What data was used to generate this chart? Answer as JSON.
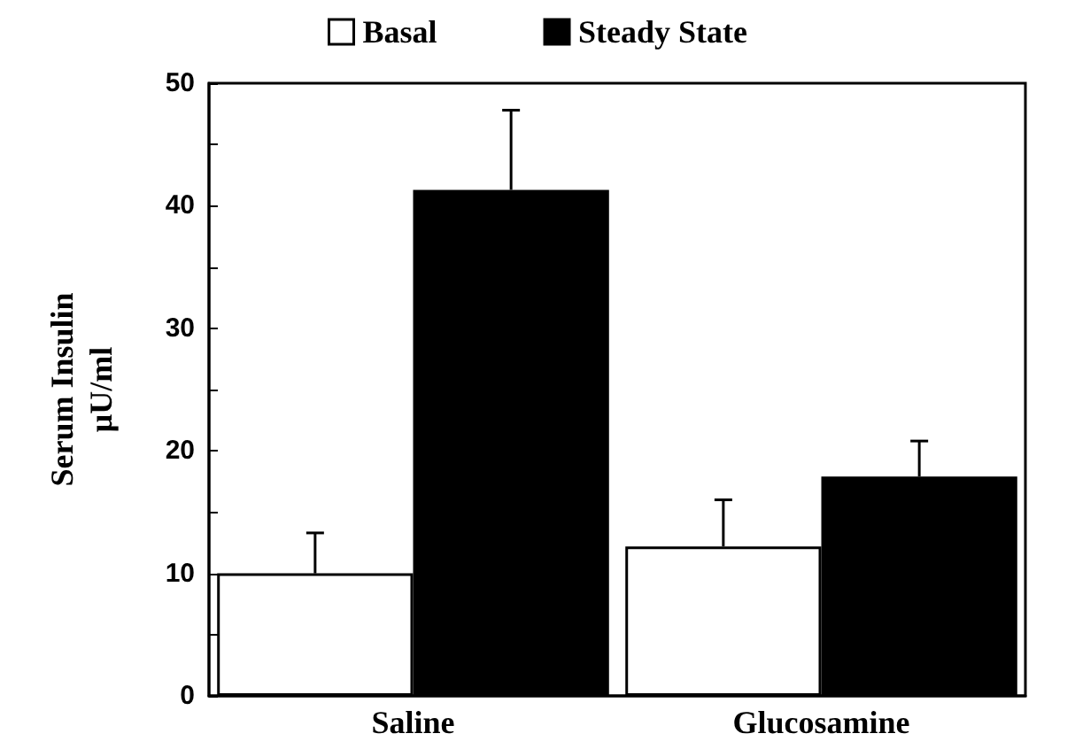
{
  "chart_data": {
    "type": "bar",
    "ylabel": "Serum Insulin\nμU/ml",
    "categories": [
      "Saline",
      "Glucosamine"
    ],
    "series": [
      {
        "name": "Basal",
        "color": "#ffffff",
        "values": [
          10,
          12.2
        ],
        "errors": [
          [
            10,
            13.3
          ],
          [
            12.2,
            16
          ]
        ]
      },
      {
        "name": "Steady State",
        "color": "#000000",
        "values": [
          41.3,
          17.9
        ],
        "errors": [
          [
            41.3,
            47.8
          ],
          [
            17.9,
            20.8
          ]
        ]
      }
    ],
    "ylim": [
      0,
      50
    ],
    "yticks": [
      0,
      {
        "value": 5,
        "label": null
      },
      10,
      {
        "value": 15,
        "label": null
      },
      20,
      {
        "value": 25,
        "label": null
      },
      30,
      {
        "value": 35,
        "label": null
      },
      40,
      {
        "value": 45,
        "label": null
      },
      50
    ],
    "grid": false,
    "legend": "top"
  }
}
